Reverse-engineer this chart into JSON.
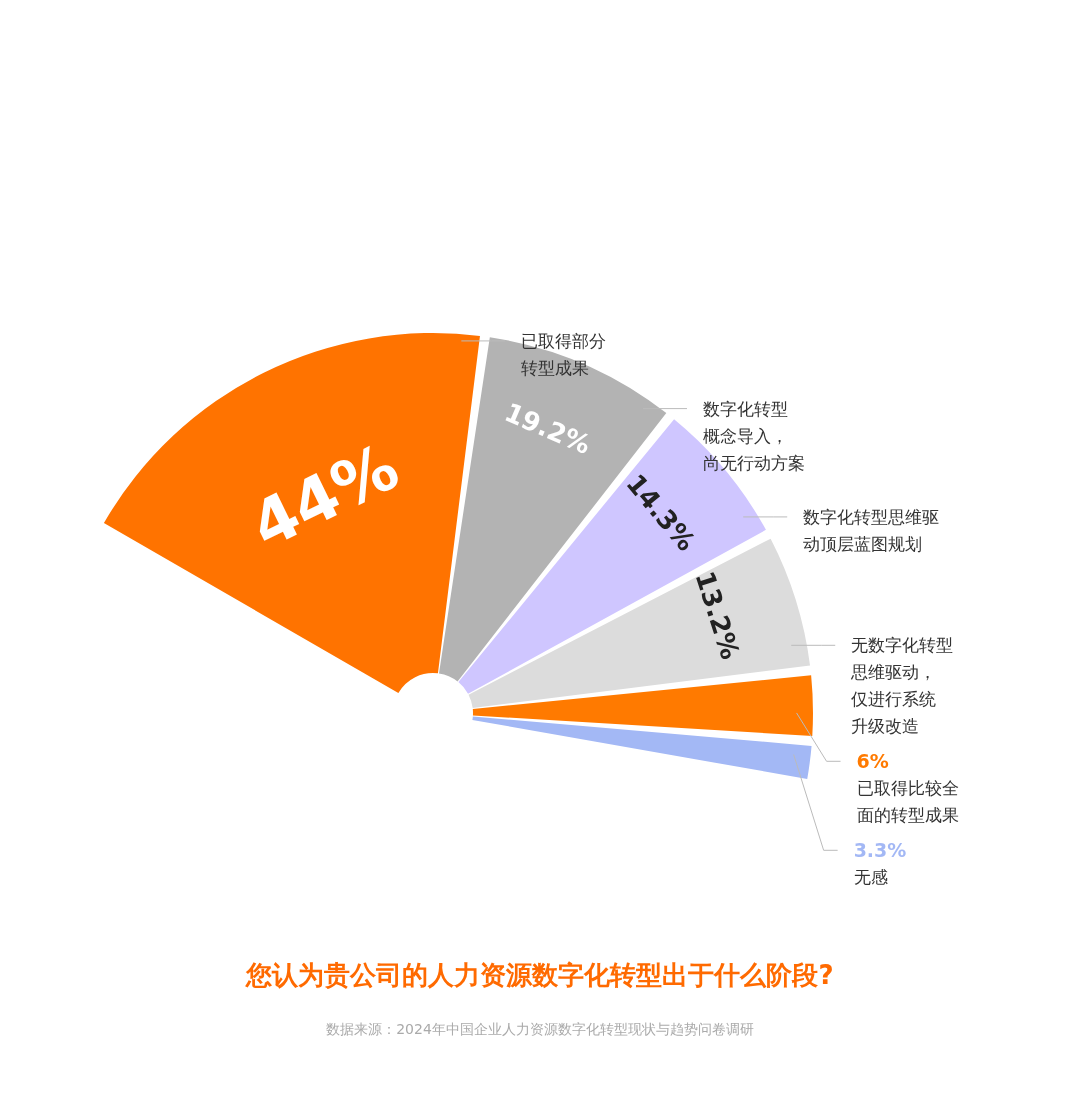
{
  "chart_data": {
    "type": "pie",
    "title": "您认为贵公司的人力资源数字化转型出于什么阶段?",
    "categories": [
      "已取得部分转型成果",
      "数字化转型概念导入，尚无行动方案",
      "数字化转型思维驱动顶层蓝图规划",
      "无数字化转型思维驱动，仅进行系统升级改造",
      "已取得比较全面的转型成果",
      "无感"
    ],
    "values": [
      44,
      19.2,
      14.3,
      13.2,
      6,
      3.3
    ],
    "value_labels": [
      "44%",
      "19.2%",
      "14.3%",
      "13.2%",
      "6%",
      "3.3%"
    ],
    "colors": [
      "#ff7300",
      "#b3b3b3",
      "#cfc6ff",
      "#dcdcdc",
      "#ff7a00",
      "#a3b8f5"
    ],
    "annotations": [
      "数据来源：2024年中国企业人力资源数字化转型现状与趋势问卷调研"
    ]
  }
}
